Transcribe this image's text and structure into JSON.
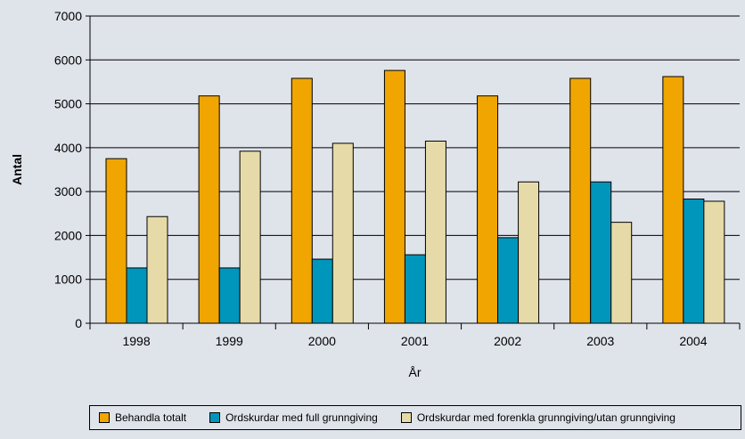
{
  "chart_data": {
    "type": "bar",
    "title": "",
    "xlabel": "År",
    "ylabel": "Antal",
    "categories": [
      "1998",
      "1999",
      "2000",
      "2001",
      "2002",
      "2003",
      "2004"
    ],
    "ylim": [
      0,
      7000
    ],
    "yticks": [
      0,
      1000,
      2000,
      3000,
      4000,
      5000,
      6000,
      7000
    ],
    "grid": true,
    "legend_position": "bottom",
    "series": [
      {
        "name": "Behandla totalt",
        "color": "#f0a500",
        "values": [
          3750,
          5180,
          5580,
          5760,
          5180,
          5580,
          5620
        ]
      },
      {
        "name": "Ordskurdar med full grunngiving",
        "color": "#0096bb",
        "values": [
          1260,
          1260,
          1460,
          1560,
          1950,
          3220,
          2830
        ]
      },
      {
        "name": "Ordskurdar med forenkla grunngiving/utan grunngiving",
        "color": "#e6dba8",
        "values": [
          2430,
          3920,
          4100,
          4150,
          3220,
          2300,
          2780
        ]
      }
    ]
  }
}
